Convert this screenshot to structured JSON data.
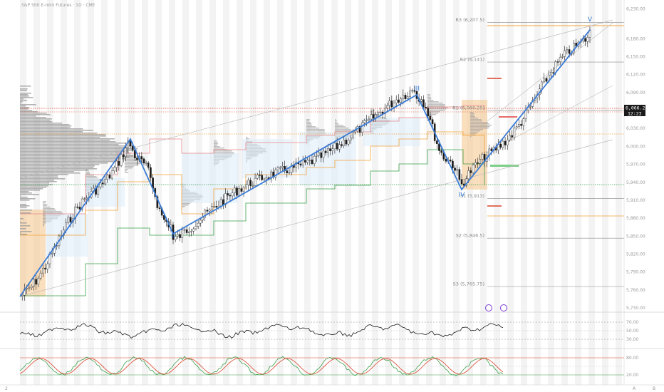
{
  "header": {
    "symbol_title": "S&P 500 E-mini Futures · 1D · CME"
  },
  "price_tag": {
    "price": "6,066.25",
    "countdown": "12:23"
  },
  "pivots": [
    {
      "label": "R3 (6,207.5)",
      "value": 6207.5
    },
    {
      "label": "R2 (6,141)",
      "value": 6141
    },
    {
      "label": "R1 (6,060.25)",
      "value": 6060.25
    },
    {
      "label": "S1 (5,913)",
      "value": 5913
    },
    {
      "label": "S2 (5,846.5)",
      "value": 5846.5
    },
    {
      "label": "S3 (5,765.75)",
      "value": 5765.75
    }
  ],
  "waves": [
    {
      "label": "II",
      "x": 243,
      "y": 334
    },
    {
      "label": "III",
      "x": 585,
      "y": 127
    },
    {
      "label": "IV",
      "x": 648,
      "y": 276
    },
    {
      "label": "V",
      "x": 828,
      "y": 30
    }
  ],
  "y_axis_ticks": [
    "6,230.00",
    "6,180.00",
    "6,150.00",
    "6,120.00",
    "6,090.00",
    "6,060.00",
    "6,030.00",
    "6,000.00",
    "5,970.00",
    "5,940.00",
    "5,910.00",
    "5,880.00",
    "5,850.00",
    "5,820.00",
    "5,790.00",
    "5,760.00",
    "5,730.00"
  ],
  "rsi_ticks": [
    "70.00",
    "50.00",
    "30.00"
  ],
  "stoch_ticks": [
    "80.00",
    "20.00"
  ],
  "bottom_bar": {
    "left": "2",
    "right_a": "A",
    "right_b": "B"
  },
  "colors": {
    "wave_line": "#3a7bd5",
    "candle": "#1a1a1a",
    "volume_profile": "#9a9a9a",
    "highlight": "#f5c48a",
    "pivot_red": "#d9442b",
    "level_orange": "#f2a33a",
    "level_green": "#3aa04a"
  },
  "chart_data": {
    "type": "candlestick",
    "title": "",
    "ylim": [
      5730,
      6240
    ],
    "swing_points": [
      {
        "label": "",
        "price": 5760
      },
      {
        "label": "",
        "price": 6010
      },
      {
        "label": "II",
        "price": 5850
      },
      {
        "label": "III",
        "price": 6090
      },
      {
        "label": "IV",
        "price": 5920
      },
      {
        "label": "V",
        "price": 6225
      }
    ],
    "last_price": 6066.25
  }
}
